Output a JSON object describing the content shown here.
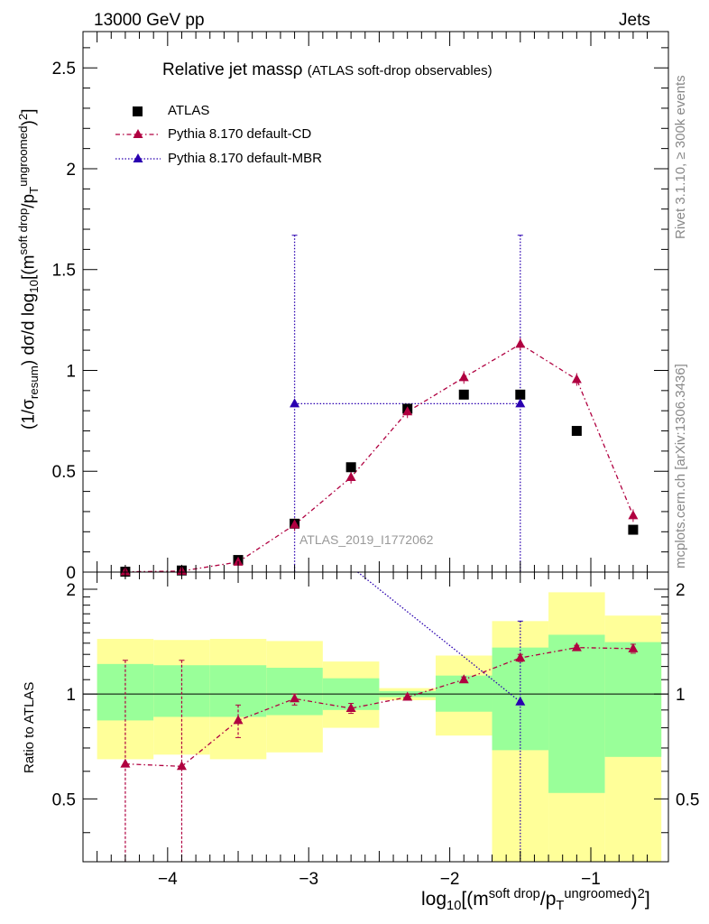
{
  "header": {
    "left": "13000 GeV pp",
    "right": "Jets"
  },
  "side": {
    "rivet": "Rivet 3.1.10, ≥ 300k events",
    "mcplots": "mcplots.cern.ch [arXiv:1306.3436]"
  },
  "axis_labels": {
    "y_pre": "(1/σ",
    "y_sub1": "resum",
    "y_mid": ") dσ/d log",
    "y_sub2": "10",
    "y_brk": "[(m",
    "y_sup1": "soft drop",
    "y_slash": "/p",
    "y_sub3": "T",
    "y_sup2": "ungroomed",
    "y_end": ")",
    "y_sup3": "2",
    "y_close": "]",
    "ratio": "Ratio to ATLAS",
    "x_pre": "log",
    "x_sub1": "10",
    "x_brk": "[(m",
    "x_sup1": "soft drop",
    "x_slash": "/p",
    "x_sub2": "T",
    "x_sup2": "ungroomed",
    "x_end": ")",
    "x_sup3": "2",
    "x_close": "]"
  },
  "title": {
    "main": "Relative jet massρ",
    "sub": "(ATLAS soft-drop observables)"
  },
  "watermark": "ATLAS_2019_I1772062",
  "colors": {
    "atlas": "#000000",
    "cd": "#b00040",
    "mbr": "#2a00b0",
    "band_yellow": "#ffff99",
    "band_green": "#99ff99"
  },
  "chart_data": [
    {
      "type": "scatter",
      "panel": "main",
      "xlim": [
        -4.6,
        -0.45
      ],
      "ylim": [
        0,
        2.68
      ],
      "xticks": [
        -4,
        -3,
        -2,
        -1
      ],
      "yticks": [
        0,
        0.5,
        1,
        1.5,
        2,
        2.5
      ],
      "ytick_labels": [
        "0",
        "0.5",
        "1",
        "1.5",
        "2",
        "2.5"
      ],
      "legend": [
        "ATLAS",
        "Pythia 8.170 default-CD",
        "Pythia 8.170 default-MBR"
      ],
      "series": [
        {
          "name": "ATLAS",
          "marker": "square",
          "x": [
            -4.3,
            -3.9,
            -3.5,
            -3.1,
            -2.7,
            -2.3,
            -1.9,
            -1.5,
            -1.1,
            -0.7
          ],
          "y": [
            0.002,
            0.008,
            0.06,
            0.24,
            0.52,
            0.81,
            0.88,
            0.88,
            0.7,
            0.21
          ]
        },
        {
          "name": "Pythia 8.170 default-CD",
          "marker": "triangle",
          "line": "dashdot",
          "x": [
            -4.3,
            -3.9,
            -3.5,
            -3.1,
            -2.7,
            -2.3,
            -1.9,
            -1.5,
            -1.1,
            -0.7
          ],
          "y": [
            0.0015,
            0.005,
            0.05,
            0.235,
            0.47,
            0.795,
            0.965,
            1.13,
            0.955,
            0.28
          ]
        },
        {
          "name": "Pythia 8.170 default-MBR",
          "marker": "triangle",
          "line": "dotted",
          "x": [
            -3.1,
            -1.5
          ],
          "y": [
            0.835,
            0.835
          ],
          "xerr": [
            [
              -3.1,
              -1.5
            ],
            [
              -3.1,
              -1.5
            ]
          ],
          "yerr_high": [
            1.67,
            1.67
          ]
        }
      ]
    },
    {
      "type": "scatter",
      "panel": "ratio",
      "xlim": [
        -4.6,
        -0.45
      ],
      "ylim": [
        0.33,
        2.24
      ],
      "xticks": [
        -4,
        -3,
        -2,
        -1
      ],
      "xtick_labels": [
        "−4",
        "−3",
        "−2",
        "−1"
      ],
      "yticks": [
        0.5,
        1,
        2
      ],
      "ytick_labels": [
        "0.5",
        "1",
        "2"
      ],
      "bands": [
        {
          "x0": -4.5,
          "x1": -4.1,
          "yellow": [
            0.65,
            1.44
          ],
          "green": [
            0.84,
            1.22
          ]
        },
        {
          "x0": -4.1,
          "x1": -3.7,
          "yellow": [
            0.67,
            1.43
          ],
          "green": [
            0.86,
            1.21
          ]
        },
        {
          "x0": -3.7,
          "x1": -3.3,
          "yellow": [
            0.65,
            1.44
          ],
          "green": [
            0.86,
            1.21
          ]
        },
        {
          "x0": -3.3,
          "x1": -2.9,
          "yellow": [
            0.68,
            1.42
          ],
          "green": [
            0.87,
            1.19
          ]
        },
        {
          "x0": -2.9,
          "x1": -2.5,
          "yellow": [
            0.8,
            1.24
          ],
          "green": [
            0.9,
            1.11
          ]
        },
        {
          "x0": -2.5,
          "x1": -2.1,
          "yellow": [
            0.96,
            1.04
          ],
          "green": [
            0.98,
            1.02
          ]
        },
        {
          "x0": -2.1,
          "x1": -1.7,
          "yellow": [
            0.76,
            1.29
          ],
          "green": [
            0.89,
            1.13
          ]
        },
        {
          "x0": -1.7,
          "x1": -1.3,
          "yellow": [
            0.33,
            1.62
          ],
          "green": [
            0.69,
            1.36
          ]
        },
        {
          "x0": -1.3,
          "x1": -0.9,
          "yellow": [
            0.33,
            1.96
          ],
          "green": [
            0.52,
            1.48
          ]
        },
        {
          "x0": -0.9,
          "x1": -0.5,
          "yellow": [
            0.33,
            1.68
          ],
          "green": [
            0.66,
            1.41
          ]
        }
      ],
      "series": [
        {
          "name": "Pythia 8.170 default-CD",
          "marker": "triangle",
          "line": "dashdot",
          "x": [
            -4.3,
            -3.9,
            -3.5,
            -3.1,
            -2.7,
            -2.3,
            -1.9,
            -1.5,
            -1.1,
            -0.7
          ],
          "y": [
            0.63,
            0.62,
            0.84,
            0.97,
            0.91,
            0.98,
            1.1,
            1.27,
            1.36,
            1.35
          ],
          "err_low": [
            0.33,
            0.33,
            0.75,
            0.93,
            0.88,
            0.97,
            1.08,
            1.24,
            1.34,
            1.31
          ],
          "err_high": [
            1.25,
            1.25,
            0.93,
            1.0,
            0.94,
            1.0,
            1.12,
            1.3,
            1.38,
            1.39
          ]
        },
        {
          "name": "Pythia 8.170 default-MBR",
          "marker": "triangle",
          "line": "dotted",
          "x": [
            -1.5
          ],
          "y": [
            0.95
          ],
          "err_low": [
            0.33
          ],
          "err_high": [
            1.62
          ]
        }
      ]
    }
  ]
}
